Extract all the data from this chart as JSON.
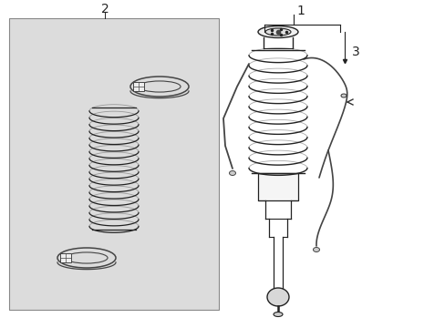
{
  "bg_color": "#ffffff",
  "box_facecolor": "#dcdcdc",
  "box_edgecolor": "#888888",
  "line_color": "#222222",
  "label_1": "1",
  "label_2": "2",
  "label_3": "3",
  "label_fontsize": 10,
  "fig_width": 4.89,
  "fig_height": 3.6,
  "dpi": 100
}
